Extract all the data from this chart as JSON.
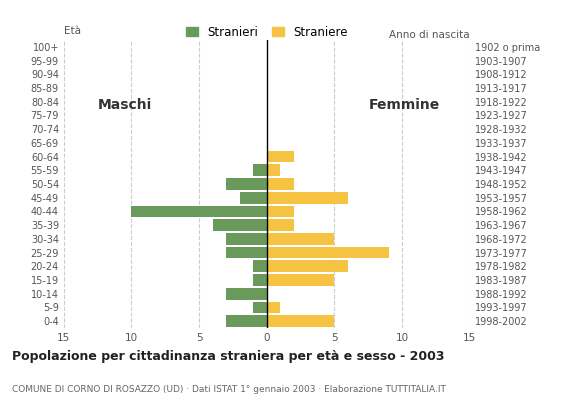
{
  "age_groups": [
    "0-4",
    "5-9",
    "10-14",
    "15-19",
    "20-24",
    "25-29",
    "30-34",
    "35-39",
    "40-44",
    "45-49",
    "50-54",
    "55-59",
    "60-64",
    "65-69",
    "70-74",
    "75-79",
    "80-84",
    "85-89",
    "90-94",
    "95-99",
    "100+"
  ],
  "birth_years": [
    "1998-2002",
    "1993-1997",
    "1988-1992",
    "1983-1987",
    "1978-1982",
    "1973-1977",
    "1968-1972",
    "1963-1967",
    "1958-1962",
    "1953-1957",
    "1948-1952",
    "1943-1947",
    "1938-1942",
    "1933-1937",
    "1928-1932",
    "1923-1927",
    "1918-1922",
    "1913-1917",
    "1908-1912",
    "1903-1907",
    "1902 o prima"
  ],
  "males": [
    3,
    1,
    3,
    1,
    1,
    3,
    3,
    4,
    10,
    2,
    3,
    1,
    0,
    0,
    0,
    0,
    0,
    0,
    0,
    0,
    0
  ],
  "females": [
    5,
    1,
    0,
    5,
    6,
    9,
    5,
    2,
    2,
    6,
    2,
    1,
    2,
    0,
    0,
    0,
    0,
    0,
    0,
    0,
    0
  ],
  "male_color": "#6a9a5b",
  "female_color": "#f5c242",
  "xlim": 15,
  "title": "Popolazione per cittadinanza straniera per età e sesso - 2003",
  "subtitle": "COMUNE DI CORNO DI ROSAZZO (UD) · Dati ISTAT 1° gennaio 2003 · Elaborazione TUTTITALIA.IT",
  "legend_male": "Stranieri",
  "legend_female": "Straniere",
  "label_eta": "Età",
  "label_maschi": "Maschi",
  "label_femmine": "Femmine",
  "label_anno": "Anno di nascita",
  "bg_color": "#ffffff",
  "grid_color": "#cccccc",
  "bar_height": 0.85
}
